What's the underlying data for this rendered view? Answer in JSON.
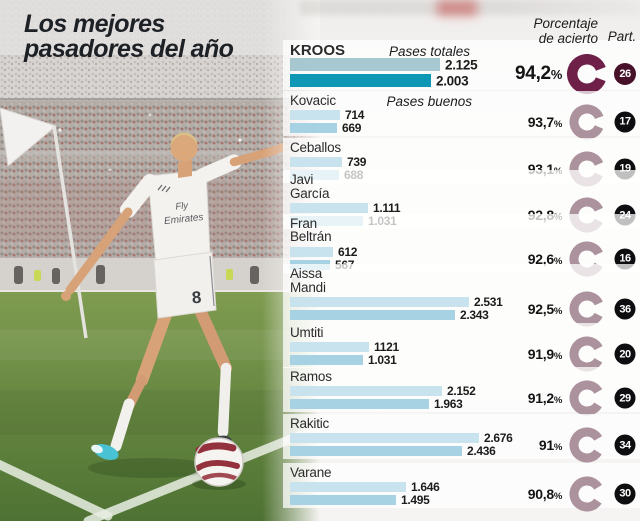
{
  "title": {
    "line1": "Los mejores",
    "line2": "pasadores del año"
  },
  "ui": {
    "pases_totales": "Pases totales",
    "pases_buenos": "Pases buenos",
    "porcentaje_line1": "Porcentaje",
    "porcentaje_line2": "de acierto",
    "part": "Part.",
    "percent_symbol": "%"
  },
  "photo": {
    "jersey_sponsor_line1": "Fly",
    "jersey_sponsor_line2": "Emirates",
    "shirt_number": "8"
  },
  "colors": {
    "bar_total": "#c8e2ee",
    "bar_good": "#a6d2e4",
    "kroos_bar_total": "#a7c8d1",
    "kroos_bar_good": "#0f98b6",
    "ring": "#ab929d",
    "ring_highlight": "#6e2048",
    "badge": "#0e0e10",
    "badge_highlight": "#471129",
    "title_text": "#1d2126"
  },
  "players": [
    {
      "name": "KROOS",
      "total": "2.125",
      "good": "2.003",
      "total_n": 2125,
      "good_n": 2003,
      "pct": "94,2",
      "pct_n": 94.2,
      "part": "26",
      "highlight": true
    },
    {
      "name": "Kovacic",
      "total": "714",
      "good": "669",
      "total_n": 714,
      "good_n": 669,
      "pct": "93,7",
      "pct_n": 93.7,
      "part": "17",
      "highlight": false
    },
    {
      "name": "Ceballos",
      "total": "739",
      "good": "688",
      "total_n": 739,
      "good_n": 688,
      "pct": "93,1",
      "pct_n": 93.1,
      "part": "19",
      "highlight": false
    },
    {
      "name": "Javi\nGarcía",
      "total": "1.111",
      "good": "1.031",
      "total_n": 1111,
      "good_n": 1031,
      "pct": "92,8",
      "pct_n": 92.8,
      "part": "24",
      "highlight": false
    },
    {
      "name": "Fran\nBeltrán",
      "total": "612",
      "good": "567",
      "total_n": 612,
      "good_n": 567,
      "pct": "92,6",
      "pct_n": 92.6,
      "part": "16",
      "highlight": false
    },
    {
      "name": "Aissa\nMandi",
      "total": "2.531",
      "good": "2.343",
      "total_n": 2531,
      "good_n": 2343,
      "pct": "92,5",
      "pct_n": 92.5,
      "part": "36",
      "highlight": false
    },
    {
      "name": "Umtiti",
      "total": "1121",
      "good": "1.031",
      "total_n": 1121,
      "good_n": 1031,
      "pct": "91,9",
      "pct_n": 91.9,
      "part": "20",
      "highlight": false
    },
    {
      "name": "Ramos",
      "total": "2.152",
      "good": "1.963",
      "total_n": 2152,
      "good_n": 1963,
      "pct": "91,2",
      "pct_n": 91.2,
      "part": "29",
      "highlight": false
    },
    {
      "name": "Rakitic",
      "total": "2.676",
      "good": "2.436",
      "total_n": 2676,
      "good_n": 2436,
      "pct": "91",
      "pct_n": 91.0,
      "part": "34",
      "highlight": false
    },
    {
      "name": "Varane",
      "total": "1.646",
      "good": "1.495",
      "total_n": 1646,
      "good_n": 1495,
      "pct": "90,8",
      "pct_n": 90.8,
      "part": "30",
      "highlight": false
    }
  ],
  "chart_data": {
    "type": "bar",
    "orientation": "horizontal",
    "title": "Los mejores pasadores del año",
    "categories": [
      "Kroos",
      "Kovacic",
      "Ceballos",
      "Javi García",
      "Fran Beltrán",
      "Aissa Mandi",
      "Umtiti",
      "Ramos",
      "Rakitic",
      "Varane"
    ],
    "series": [
      {
        "name": "Pases totales",
        "values": [
          2125,
          714,
          739,
          1111,
          612,
          2531,
          1121,
          2152,
          2676,
          1646
        ]
      },
      {
        "name": "Pases buenos",
        "values": [
          2003,
          669,
          688,
          1031,
          567,
          2343,
          1031,
          1963,
          2436,
          1495
        ]
      }
    ],
    "percent_accuracy": [
      94.2,
      93.7,
      93.1,
      92.8,
      92.6,
      92.5,
      91.9,
      91.2,
      91.0,
      90.8
    ],
    "participations": [
      26,
      17,
      19,
      24,
      16,
      36,
      20,
      29,
      34,
      30
    ],
    "xlim": [
      0,
      2800
    ],
    "legend_position": "inline-first-row",
    "grid": false
  }
}
